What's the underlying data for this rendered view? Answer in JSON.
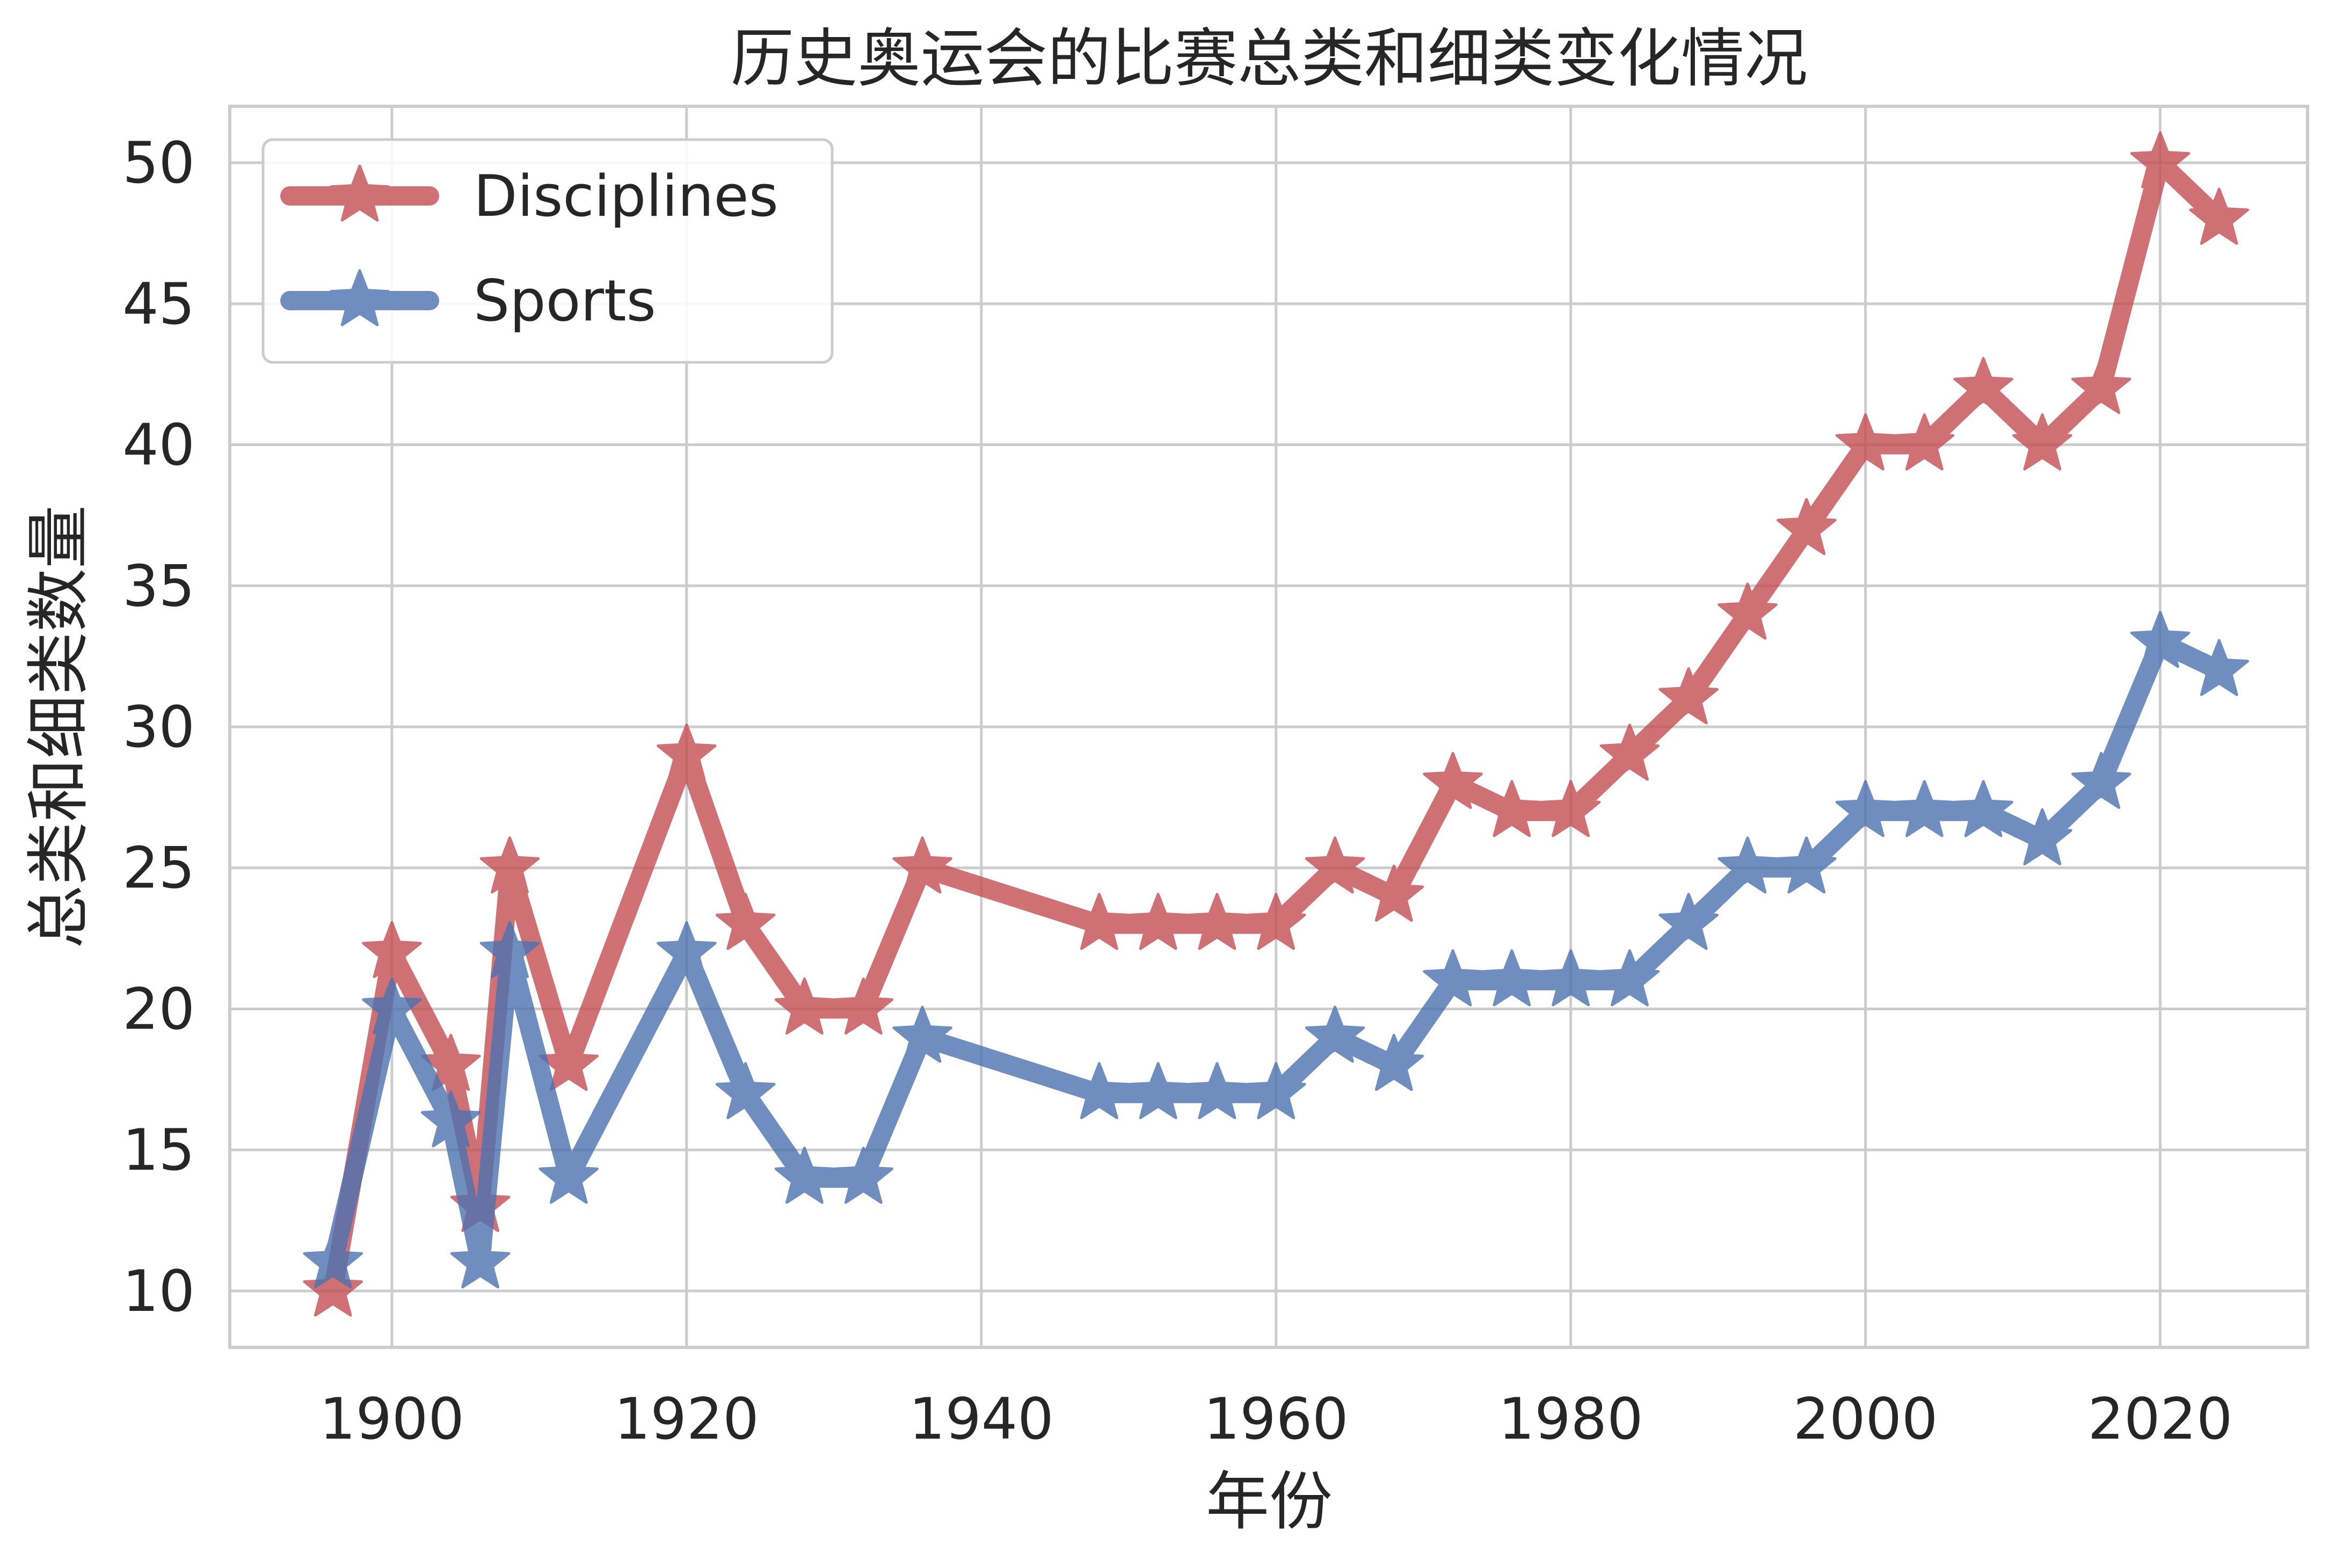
{
  "chart_data": {
    "type": "line",
    "title": "历史奥运会的比赛总类和细类变化情况",
    "xlabel": "年份",
    "ylabel": "总类和细类数量",
    "xlim": [
      1889,
      2030
    ],
    "ylim": [
      8,
      52
    ],
    "xticks": [
      1900,
      1920,
      1940,
      1960,
      1980,
      2000,
      2020
    ],
    "yticks": [
      10,
      15,
      20,
      25,
      30,
      35,
      40,
      45,
      50
    ],
    "grid": true,
    "legend_position": "top-left",
    "x": [
      1896,
      1900,
      1904,
      1906,
      1908,
      1912,
      1920,
      1924,
      1928,
      1932,
      1936,
      1948,
      1952,
      1956,
      1960,
      1964,
      1968,
      1972,
      1976,
      1980,
      1984,
      1988,
      1992,
      1996,
      2000,
      2004,
      2008,
      2012,
      2016,
      2020,
      2024
    ],
    "series": [
      {
        "name": "Disciplines",
        "color": "#c44e52",
        "marker": "star",
        "values": [
          10,
          22,
          18,
          13,
          25,
          18,
          29,
          23,
          20,
          20,
          25,
          23,
          23,
          23,
          23,
          25,
          24,
          28,
          27,
          27,
          29,
          31,
          34,
          37,
          40,
          40,
          42,
          40,
          42,
          50,
          48
        ]
      },
      {
        "name": "Sports",
        "color": "#4c72b0",
        "marker": "star",
        "values": [
          11,
          20,
          16,
          11,
          22,
          14,
          22,
          17,
          14,
          14,
          19,
          17,
          17,
          17,
          17,
          19,
          18,
          21,
          21,
          21,
          21,
          23,
          25,
          25,
          27,
          27,
          27,
          26,
          28,
          33,
          32
        ]
      }
    ]
  }
}
